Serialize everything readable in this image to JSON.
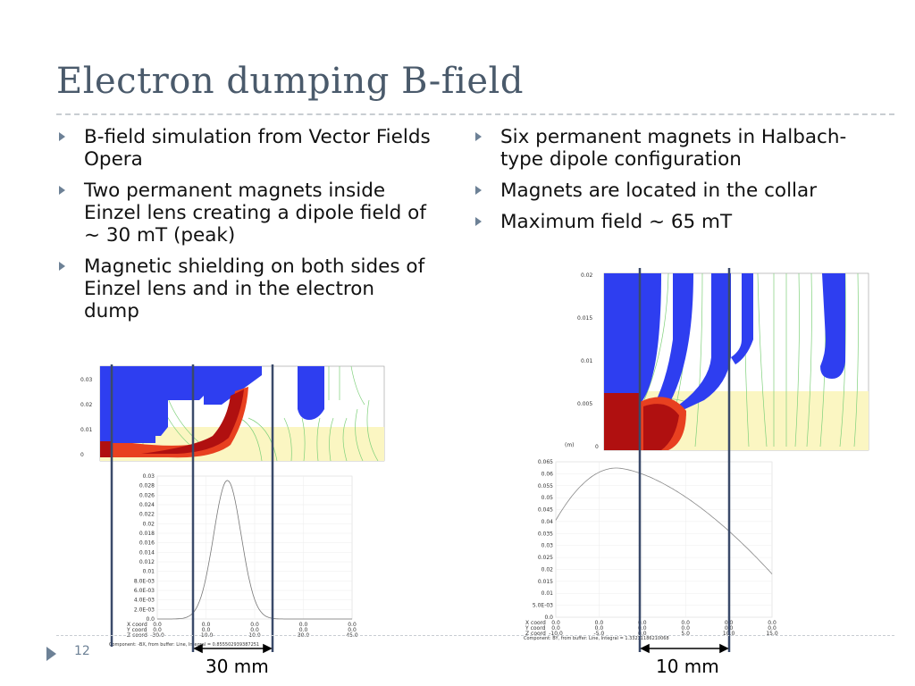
{
  "title": "Electron dumping B-field",
  "left_bullets": [
    "B-field simulation from Vector Fields Opera",
    "Two permanent magnets inside Einzel lens creating a dipole field of ~ 30 mT (peak)",
    "Magnetic shielding on both sides of Einzel lens and in the electron dump"
  ],
  "right_bullets": [
    "Six permanent magnets in Halbach-type dipole configuration",
    "Magnets are located in the collar",
    "Maximum field ~ 65 mT"
  ],
  "left_sim": {
    "y_ticks": [
      "0.03",
      "0.02",
      "0.01",
      "0"
    ],
    "y_unit": "(m)"
  },
  "right_sim": {
    "y_ticks": [
      "0.02",
      "0.015",
      "0.01",
      "0.005",
      "0"
    ],
    "y_unit": "(m)"
  },
  "left_plot": {
    "y_ticks": [
      "0.03",
      "0.028",
      "0.026",
      "0.024",
      "0.022",
      "0.02",
      "0.018",
      "0.016",
      "0.014",
      "0.012",
      "0.01",
      "8.0E-03",
      "6.0E-03",
      "4.0E-03",
      "2.0E-03",
      "0.0"
    ],
    "coord_labels": [
      "X coord",
      "Y coord",
      "Z coord"
    ],
    "coord_cols": [
      [
        "0.0",
        "0.0",
        "-30.0"
      ],
      [
        "0.0",
        "0.0",
        "-10.0"
      ],
      [
        "0.0",
        "0.0",
        "10.0"
      ],
      [
        "0.0",
        "0.0",
        "30.0"
      ],
      [
        "0.0",
        "0.0",
        "45.0"
      ]
    ],
    "footer": "Component: -BX, from buffer: Line, Integral = 0.855502939387251"
  },
  "right_plot": {
    "y_ticks": [
      "0.065",
      "0.06",
      "0.055",
      "0.05",
      "0.045",
      "0.04",
      "0.035",
      "0.03",
      "0.025",
      "0.02",
      "0.015",
      "0.01",
      "5.0E-03",
      "0.0"
    ],
    "coord_labels": [
      "X coord",
      "Y coord",
      "Z coord"
    ],
    "coord_cols": [
      [
        "0.0",
        "0.0",
        "-10.0"
      ],
      [
        "0.0",
        "0.0",
        "-5.0"
      ],
      [
        "0.0",
        "0.0",
        "0.0"
      ],
      [
        "0.0",
        "0.0",
        "5.0"
      ],
      [
        "0.0",
        "0.0",
        "10.0"
      ],
      [
        "0.0",
        "0.0",
        "15.0"
      ]
    ],
    "footer": "Component: BY, from buffer: Line, Integral = 1.33231186210068"
  },
  "left_dimension": "30 mm",
  "right_dimension": "10 mm",
  "slide_number": "12",
  "colors": {
    "magnet_blue": "#2e3ef0",
    "hot_red": "#b01010",
    "field_green": "#7ed07a",
    "title_color": "#4a5a6b",
    "bullet_arrow": "#6d8196",
    "marker_line": "#3a4a6a"
  }
}
